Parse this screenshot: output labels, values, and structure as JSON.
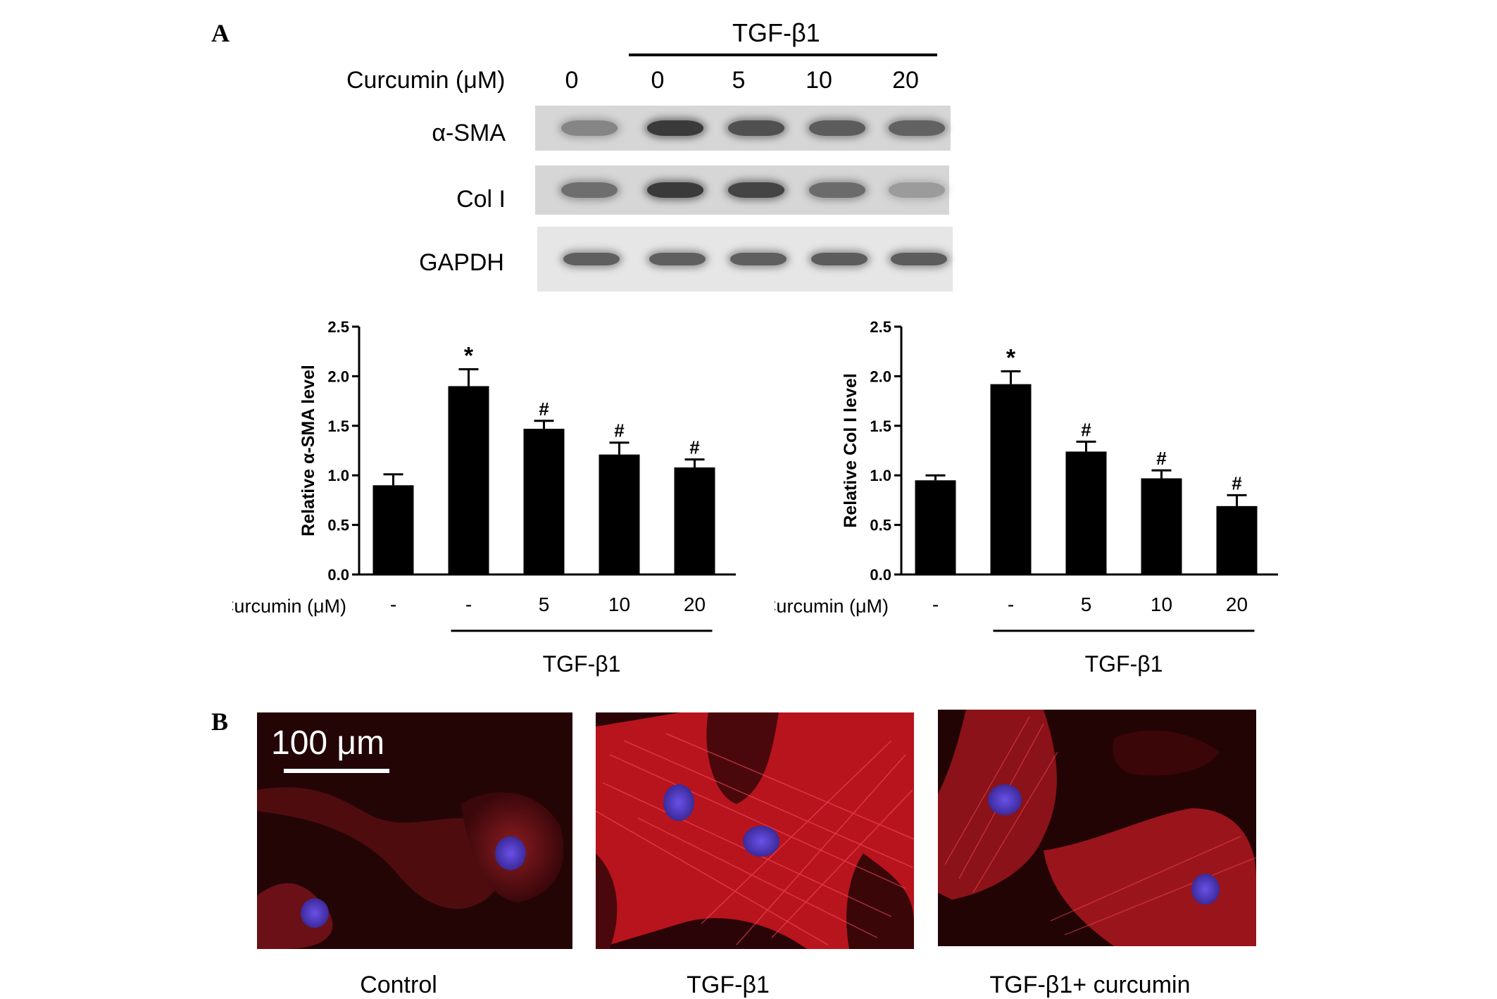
{
  "panel_a_letter": "A",
  "panel_b_letter": "B",
  "blot": {
    "treatment_label": "TGF-β1",
    "conc_header": "Curcumin (μM)",
    "conc_values": [
      "0",
      "0",
      "5",
      "10",
      "20"
    ],
    "rows": [
      {
        "label": "α-SMA",
        "intensities": [
          0.45,
          0.95,
          0.8,
          0.72,
          0.68
        ]
      },
      {
        "label": "Col I",
        "intensities": [
          0.6,
          0.95,
          0.88,
          0.62,
          0.3
        ]
      },
      {
        "label": "GAPDH",
        "intensities": [
          0.7,
          0.7,
          0.7,
          0.72,
          0.72
        ]
      }
    ]
  },
  "chart_data": [
    {
      "type": "bar",
      "ylabel": "Relative α-SMA level",
      "ylim": [
        0,
        2.5
      ],
      "yticks": [
        "0.0",
        "0.5",
        "1.0",
        "1.5",
        "2.0",
        "2.5"
      ],
      "categories": [
        "-",
        "-",
        "5",
        "10",
        "20"
      ],
      "values": [
        0.9,
        1.9,
        1.47,
        1.21,
        1.08
      ],
      "errors": [
        0.11,
        0.17,
        0.08,
        0.12,
        0.08
      ],
      "annotations": [
        "",
        "*",
        "#",
        "#",
        "#"
      ],
      "x_prefix": "Curcumin (μM)",
      "group_label": "TGF-β1"
    },
    {
      "type": "bar",
      "ylabel": "Relative Col I level",
      "ylim": [
        0,
        2.5
      ],
      "yticks": [
        "0.0",
        "0.5",
        "1.0",
        "1.5",
        "2.0",
        "2.5"
      ],
      "categories": [
        "-",
        "-",
        "5",
        "10",
        "20"
      ],
      "values": [
        0.95,
        1.92,
        1.24,
        0.97,
        0.69
      ],
      "errors": [
        0.05,
        0.13,
        0.1,
        0.08,
        0.11
      ],
      "annotations": [
        "",
        "*",
        "#",
        "#",
        "#"
      ],
      "x_prefix": "Curcumin (μM)",
      "group_label": "TGF-β1"
    }
  ],
  "micrographs": {
    "scale_bar_label": "100 μm",
    "captions": [
      "Control",
      "TGF-β1",
      "TGF-β1+ curcumin"
    ],
    "stain_color": "#e0202a",
    "nucleus_color": "#5a3cd0"
  }
}
